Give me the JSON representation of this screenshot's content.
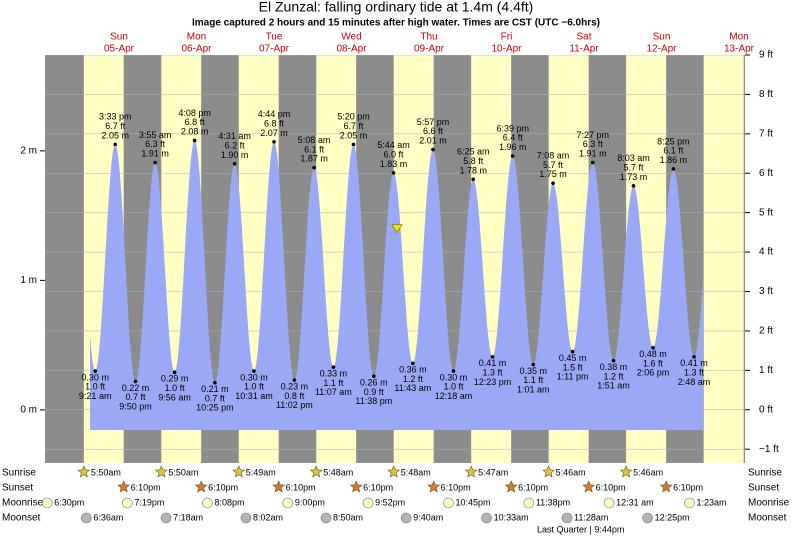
{
  "chart_data": {
    "type": "tide",
    "title": "El Zunzal: falling  ordinary tide at 1.4m (4.4ft)",
    "subtitle": "Image captured 2 hours and 15 minutes after high water. Times are CST (UTC −6.0hrs)",
    "current_level": 1.4,
    "categories": [
      null,
      "Sun",
      "Mon",
      "Tue",
      "Wed",
      "Thu",
      "Fri",
      "Sat",
      "Sun",
      "Mon"
    ],
    "dates": [
      null,
      "05-Apr",
      "06-Apr",
      "07-Apr",
      "08-Apr",
      "09-Apr",
      "10-Apr",
      "11-Apr",
      "12-Apr",
      "13-Apr"
    ],
    "ylim": [
      -0.41,
      2.74
    ],
    "yticks": [
      {
        "value": 0,
        "label": "0 m"
      },
      {
        "value": 1,
        "label": "1 m"
      },
      {
        "value": 2,
        "label": "2 m"
      }
    ],
    "y2lim": [
      -1.35,
      9.0
    ],
    "y2ticks": [
      {
        "value": -1,
        "label": "−1 ft"
      },
      {
        "value": 0,
        "label": "0 ft"
      },
      {
        "value": 1,
        "label": "1 ft"
      },
      {
        "value": 2,
        "label": "2 ft"
      },
      {
        "value": 3,
        "label": "3 ft"
      },
      {
        "value": 4,
        "label": "4 ft"
      },
      {
        "value": 5,
        "label": "5 ft"
      },
      {
        "value": 6,
        "label": "6 ft"
      },
      {
        "value": 7,
        "label": "7 ft"
      },
      {
        "value": 8,
        "label": "8 ft"
      },
      {
        "value": 9,
        "label": "9 ft"
      }
    ],
    "grid": true,
    "colors": {
      "night": "#8c8c8c",
      "day": "#ffffc4",
      "water": "#9aa8f5",
      "day_label": "#cc0000"
    },
    "tides": [
      [],
      [
        {
          "time": "9:21 am",
          "value": 0.3,
          "value_label": "0.30 m",
          "ft_label": "1.0 ft"
        },
        {
          "time": "3:33 pm",
          "value": 2.05,
          "value_label": "2.05 m",
          "ft_label": "6.7 ft"
        },
        {
          "time": "9:50 pm",
          "value": 0.22,
          "value_label": "0.22 m",
          "ft_label": "0.7 ft"
        }
      ],
      [
        {
          "time": "3:55 am",
          "value": 1.91,
          "value_label": "1.91 m",
          "ft_label": "6.3 ft"
        },
        {
          "time": "9:56 am",
          "value": 0.29,
          "value_label": "0.29 m",
          "ft_label": "1.0 ft"
        },
        {
          "time": "4:08 pm",
          "value": 2.08,
          "value_label": "2.08 m",
          "ft_label": "6.8 ft"
        },
        {
          "time": "10:25 pm",
          "value": 0.21,
          "value_label": "0.21 m",
          "ft_label": "0.7 ft"
        }
      ],
      [
        {
          "time": "4:31 am",
          "value": 1.9,
          "value_label": "1.90 m",
          "ft_label": "6.2 ft"
        },
        {
          "time": "10:31 am",
          "value": 0.3,
          "value_label": "0.30 m",
          "ft_label": "1.0 ft"
        },
        {
          "time": "4:44 pm",
          "value": 2.07,
          "value_label": "2.07 m",
          "ft_label": "6.8 ft"
        },
        {
          "time": "11:02 pm",
          "value": 0.23,
          "value_label": "0.23 m",
          "ft_label": "0.8 ft"
        }
      ],
      [
        {
          "time": "5:08 am",
          "value": 1.87,
          "value_label": "1.87 m",
          "ft_label": "6.1 ft"
        },
        {
          "time": "11:07 am",
          "value": 0.33,
          "value_label": "0.33 m",
          "ft_label": "1.1 ft"
        },
        {
          "time": "5:20 pm",
          "value": 2.05,
          "value_label": "2.05 m",
          "ft_label": "6.7 ft"
        },
        {
          "time": "11:38 pm",
          "value": 0.26,
          "value_label": "0.26 m",
          "ft_label": "0.9 ft"
        }
      ],
      [
        {
          "time": "5:44 am",
          "value": 1.83,
          "value_label": "1.83 m",
          "ft_label": "6.0 ft"
        },
        {
          "time": "11:43 am",
          "value": 0.36,
          "value_label": "0.36 m",
          "ft_label": "1.2 ft"
        },
        {
          "time": "5:57 pm",
          "value": 2.01,
          "value_label": "2.01 m",
          "ft_label": "6.6 ft"
        }
      ],
      [
        {
          "time": "12:18 am",
          "value": 0.3,
          "value_label": "0.30 m",
          "ft_label": "1.0 ft"
        },
        {
          "time": "6:25 am",
          "value": 1.78,
          "value_label": "1.78 m",
          "ft_label": "5.8 ft"
        },
        {
          "time": "12:23 pm",
          "value": 0.41,
          "value_label": "0.41 m",
          "ft_label": "1.3 ft"
        },
        {
          "time": "6:39 pm",
          "value": 1.96,
          "value_label": "1.96 m",
          "ft_label": "6.4 ft"
        }
      ],
      [
        {
          "time": "1:01 am",
          "value": 0.35,
          "value_label": "0.35 m",
          "ft_label": "1.1 ft"
        },
        {
          "time": "7:08 am",
          "value": 1.75,
          "value_label": "1.75 m",
          "ft_label": "5.7 ft"
        },
        {
          "time": "1:11 pm",
          "value": 0.45,
          "value_label": "0.45 m",
          "ft_label": "1.5 ft"
        },
        {
          "time": "7:27 pm",
          "value": 1.91,
          "value_label": "1.91 m",
          "ft_label": "6.3 ft"
        }
      ],
      [
        {
          "time": "1:51 am",
          "value": 0.38,
          "value_label": "0.38 m",
          "ft_label": "1.2 ft"
        },
        {
          "time": "8:03 am",
          "value": 1.73,
          "value_label": "1.73 m",
          "ft_label": "5.7 ft"
        },
        {
          "time": "2:06 pm",
          "value": 0.48,
          "value_label": "0.48 m",
          "ft_label": "1.6 ft"
        },
        {
          "time": "8:25 pm",
          "value": 1.86,
          "value_label": "1.86 m",
          "ft_label": "6.1 ft"
        }
      ],
      [
        {
          "time": "2:48 am",
          "value": 0.41,
          "value_label": "0.41 m",
          "ft_label": "1.3 ft"
        }
      ]
    ],
    "row_labels": [
      "Sunrise",
      "Sunset",
      "Moonrise",
      "Moonset"
    ],
    "sunrise": [
      null,
      "5:50am",
      "5:50am",
      "5:49am",
      "5:48am",
      "5:48am",
      "5:47am",
      "5:46am",
      "5:46am",
      null
    ],
    "sunset": [
      null,
      "6:10pm",
      "6:10pm",
      "6:10pm",
      "6:10pm",
      "6:10pm",
      "6:10pm",
      "6:10pm",
      "6:10pm",
      null
    ],
    "moonrise": [
      "6:30pm",
      "7:19pm",
      "8:08pm",
      "9:00pm",
      "9:52pm",
      "10:45pm",
      "11:38pm",
      null,
      "12:31 am",
      "1:23am"
    ],
    "moonset": [
      null,
      "6:36am",
      "7:18am",
      "8:02am",
      "8:50am",
      "9:40am",
      "10:33am",
      "11:28am",
      "12:25pm",
      null
    ],
    "moon_phase": "Last Quarter | 9:44pm"
  }
}
